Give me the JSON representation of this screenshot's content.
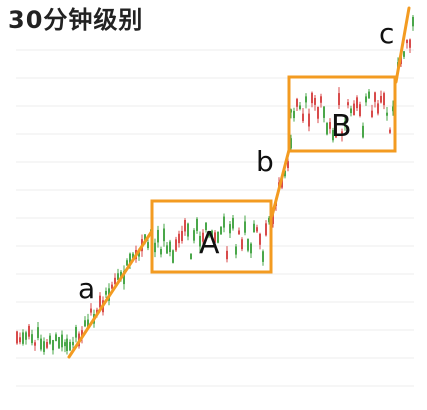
{
  "title": "30分钟级别",
  "colors": {
    "grid": "#ececec",
    "box": "#f39b21",
    "trend": "#f39b21",
    "bull": "#4aa74a",
    "bear": "#d84b4b",
    "text": "#111111"
  },
  "chart_data": {
    "type": "line",
    "title": "30分钟级别",
    "grid": true,
    "segments": [
      {
        "name": "a",
        "kind": "trend"
      },
      {
        "name": "A",
        "kind": "range"
      },
      {
        "name": "b",
        "kind": "trend"
      },
      {
        "name": "B",
        "kind": "range"
      },
      {
        "name": "c",
        "kind": "trend"
      }
    ]
  }
}
